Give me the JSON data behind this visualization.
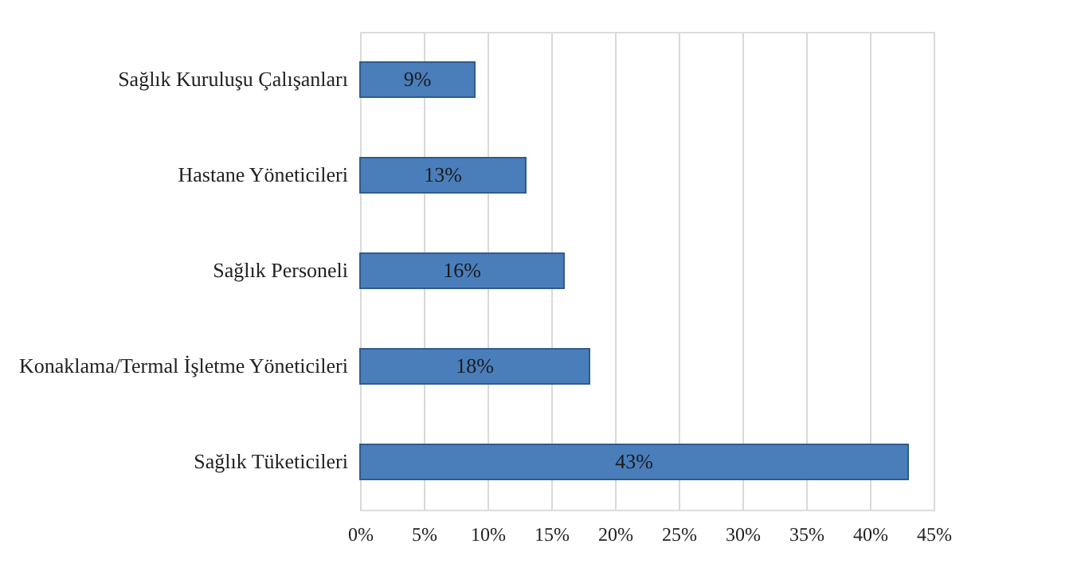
{
  "chart_data": {
    "type": "bar",
    "orientation": "horizontal",
    "categories": [
      "Sağlık Kuruluşu Çalışanları",
      "Hastane Yöneticileri",
      "Sağlık Personeli",
      "Konaklama/Termal İşletme Yöneticileri",
      "Sağlık Tüketicileri"
    ],
    "values": [
      9,
      13,
      16,
      18,
      43
    ],
    "color": "#4a7ebb",
    "value_labels": [
      "9%",
      "13%",
      "16%",
      "18%",
      "43%"
    ],
    "xlim": [
      0,
      45
    ],
    "xticks": [
      {
        "value": 0,
        "label": "0%"
      },
      {
        "value": 5,
        "label": "5%"
      },
      {
        "value": 10,
        "label": "10%"
      },
      {
        "value": 15,
        "label": "15%"
      },
      {
        "value": 20,
        "label": "20%"
      },
      {
        "value": 25,
        "label": "25%"
      },
      {
        "value": 30,
        "label": "30%"
      },
      {
        "value": 35,
        "label": "35%"
      },
      {
        "value": 40,
        "label": "40%"
      },
      {
        "value": 45,
        "label": "45%"
      }
    ],
    "grid": "x"
  }
}
